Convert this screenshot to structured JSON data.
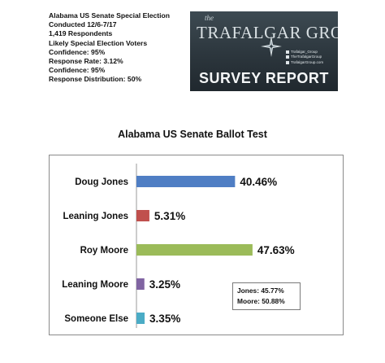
{
  "info_lines": [
    "Alabama US Senate Special Election",
    "Conducted 12/6-7/17",
    "1,419 Respondents",
    "Likely Special Election Voters",
    "Confidence: 95%",
    "Response Rate: 3.12%",
    "Confidence: 95%",
    "Response Distribution: 50%"
  ],
  "logo": {
    "the": "the",
    "brand": "TRAFALGAR GROUP",
    "social": [
      "Trafalgar_Group",
      "TheTrafalgarGroup",
      "TrafalgarGroup.com"
    ],
    "report": "SURVEY REPORT",
    "icons": [
      "compass-rose-icon",
      "twitter-icon",
      "facebook-icon",
      "web-icon"
    ]
  },
  "chart_data": {
    "type": "bar",
    "orientation": "horizontal",
    "title": "Alabama US Senate Ballot Test",
    "categories": [
      "Doug Jones",
      "Leaning Jones",
      "Roy Moore",
      "Leaning Moore",
      "Someone Else"
    ],
    "values": [
      40.46,
      5.31,
      47.63,
      3.25,
      3.35
    ],
    "value_labels": [
      "40.46%",
      "5.31%",
      "47.63%",
      "3.25%",
      "3.35%"
    ],
    "colors": [
      "#4f7ec4",
      "#c0504d",
      "#9bbb59",
      "#8064a2",
      "#4bacc6"
    ],
    "xlim": [
      0,
      50
    ],
    "grid": false,
    "legend": "none",
    "annotation": [
      "Jones: 45.77%",
      "Moore: 50.88%"
    ]
  }
}
